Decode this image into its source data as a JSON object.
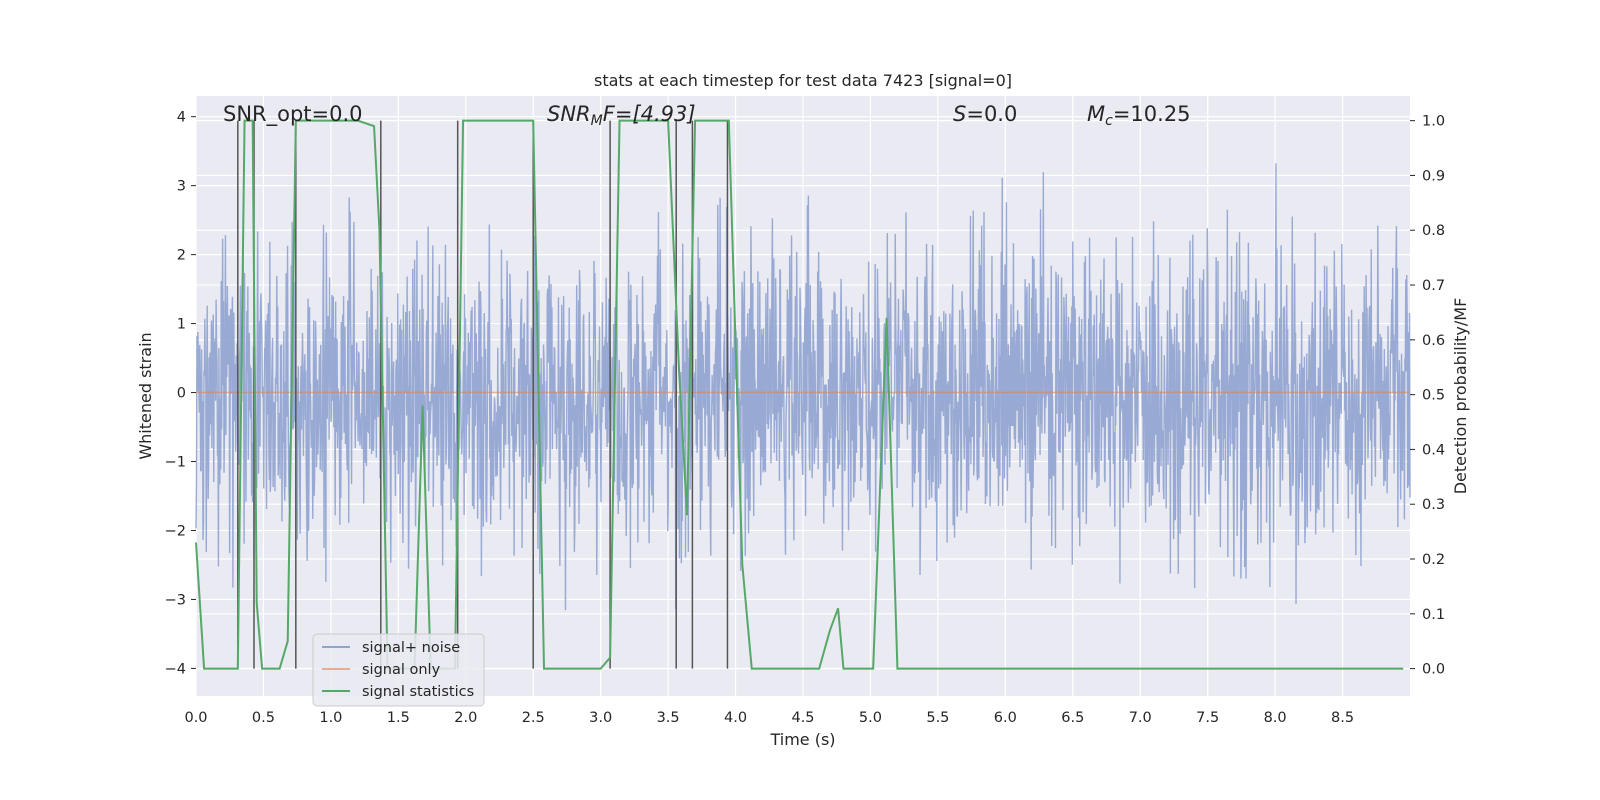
{
  "chart_data": {
    "type": "line",
    "title": "stats at each timestep for test data 7423 [signal=0]",
    "xlabel": "Time (s)",
    "ylabel_left": "Whitened strain",
    "ylabel_right": "Detection probability/MF",
    "xlim": [
      0,
      9.0
    ],
    "ylim_left": [
      -4.4,
      4.3
    ],
    "ylim_right": [
      -0.05,
      1.045
    ],
    "x_ticks": [
      "0.0",
      "0.5",
      "1.0",
      "1.5",
      "2.0",
      "2.5",
      "3.0",
      "3.5",
      "4.0",
      "4.5",
      "5.0",
      "5.5",
      "6.0",
      "6.5",
      "7.0",
      "7.5",
      "8.0",
      "8.5"
    ],
    "y_ticks_left": [
      "−4",
      "−3",
      "−2",
      "−1",
      "0",
      "1",
      "2",
      "3",
      "4"
    ],
    "y_ticks_right": [
      "0.0",
      "0.1",
      "0.2",
      "0.3",
      "0.4",
      "0.5",
      "0.6",
      "0.7",
      "0.8",
      "0.9",
      "1.0"
    ],
    "grid": true,
    "legend_position": "lower-left",
    "annotations": {
      "snr_opt": "SNR_opt=0.0",
      "snr_mf_base": "SNR",
      "snr_mf_sub": "M",
      "snr_mf_rest": "F=[4.93]",
      "s_name": "S",
      "s_value": "=0.0",
      "mc_base": "M",
      "mc_sub": "c",
      "mc_value": "=10.25"
    },
    "series": [
      {
        "name": "signal+ noise",
        "axis": "left",
        "color": "#8fa3cf",
        "description_value_range": [
          -4.0,
          4.0
        ],
        "amplitude_std": 1.0,
        "duration_s": 9.0
      },
      {
        "name": "signal only",
        "axis": "left",
        "color": "#dd8452",
        "constant_value": 0.0
      },
      {
        "name": "signal statistics",
        "axis": "right",
        "color": "#55a868",
        "x": [
          0.0,
          0.06,
          0.1,
          0.16,
          0.22,
          0.28,
          0.31,
          0.36,
          0.42,
          0.45,
          0.49,
          0.55,
          0.62,
          0.68,
          0.74,
          0.8,
          0.9,
          1.0,
          1.2,
          1.32,
          1.36,
          1.42,
          1.48,
          1.55,
          1.62,
          1.68,
          1.74,
          1.8,
          1.86,
          1.92,
          1.98,
          2.04,
          2.1,
          2.2,
          2.3,
          2.4,
          2.5,
          2.58,
          2.7,
          2.8,
          2.9,
          3.0,
          3.07,
          3.14,
          3.25,
          3.4,
          3.5,
          3.58,
          3.64,
          3.7,
          3.76,
          3.85,
          3.95,
          4.05,
          4.12,
          4.2,
          4.35,
          4.5,
          4.62,
          4.7,
          4.76,
          4.8,
          4.86,
          4.94,
          5.02,
          5.12,
          5.2,
          5.26,
          5.4,
          5.6,
          6.0,
          6.5,
          7.0,
          7.5,
          8.0,
          8.5,
          8.95
        ],
        "values": [
          0.23,
          0.0,
          0.0,
          0.0,
          0.0,
          0.0,
          0.0,
          1.0,
          1.0,
          0.12,
          0.0,
          0.0,
          0.0,
          0.05,
          1.0,
          1.0,
          1.0,
          1.0,
          1.0,
          0.99,
          0.8,
          0.0,
          0.0,
          0.0,
          0.0,
          0.48,
          0.0,
          0.0,
          0.0,
          0.0,
          1.0,
          1.0,
          1.0,
          1.0,
          1.0,
          1.0,
          1.0,
          0.0,
          0.0,
          0.0,
          0.0,
          0.0,
          0.02,
          1.0,
          1.0,
          1.0,
          1.0,
          0.55,
          0.28,
          1.0,
          1.0,
          1.0,
          1.0,
          0.19,
          0.0,
          0.0,
          0.0,
          0.0,
          0.0,
          0.07,
          0.11,
          0.0,
          0.0,
          0.0,
          0.0,
          0.64,
          0.0,
          0.0,
          0.0,
          0.0,
          0.0,
          0.0,
          0.0,
          0.0,
          0.0,
          0.0,
          0.0
        ]
      }
    ],
    "vertical_lines_x": [
      0.31,
      0.43,
      0.74,
      1.37,
      1.94,
      2.5,
      3.07,
      3.56,
      3.68,
      3.94
    ]
  }
}
